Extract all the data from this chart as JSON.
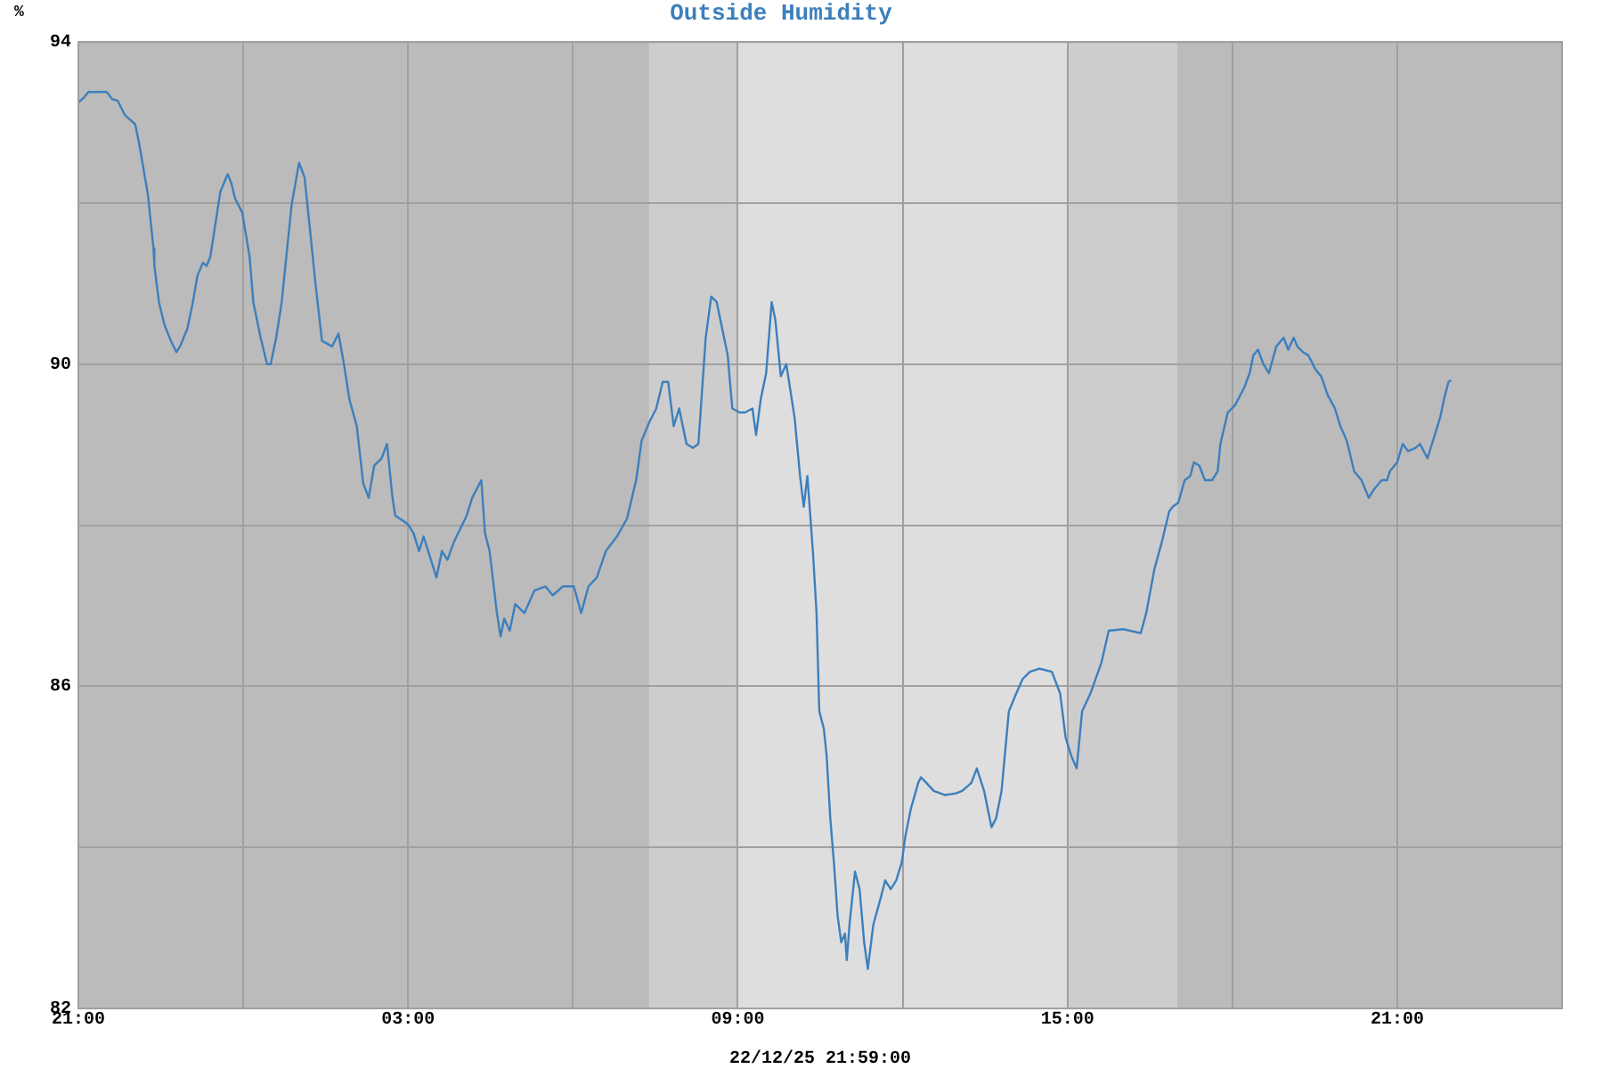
{
  "chart_data": {
    "type": "line",
    "title": "Outside Humidity",
    "xlabel": "22/12/25 21:59:00",
    "ylabel": "%",
    "xlim": [
      "--12-21T21:00",
      "--12-23T00:00"
    ],
    "xticks": [
      {
        "value": "--12-21T21:00",
        "label": "21:00"
      },
      {
        "value": "--12-22T00:00",
        "label": null
      },
      {
        "value": "--12-22T03:00",
        "label": "03:00"
      },
      {
        "value": "--12-22T06:00",
        "label": null
      },
      {
        "value": "--12-22T09:00",
        "label": "09:00"
      },
      {
        "value": "--12-22T12:00",
        "label": null
      },
      {
        "value": "--12-22T15:00",
        "label": "15:00"
      },
      {
        "value": "--12-22T18:00",
        "label": null
      },
      {
        "value": "--12-22T21:00",
        "label": "21:00"
      },
      {
        "value": "--12-23T00:00",
        "label": null
      }
    ],
    "ylim": [
      82,
      94
    ],
    "yticks": [
      82,
      {
        "value": 84,
        "label": null
      },
      86,
      {
        "value": 88,
        "label": null
      },
      90,
      {
        "value": 92,
        "label": null
      },
      94
    ],
    "grid": true,
    "marker": "none",
    "line_style": "solid",
    "bands": [
      {
        "axis": "x",
        "from": "--12-22T07:23",
        "to": "--12-22T09:00",
        "color": "#cdcdcd"
      },
      {
        "axis": "x",
        "from": "--12-22T09:00",
        "to": "--12-22T15:00",
        "color": "#dedede"
      },
      {
        "axis": "x",
        "from": "--12-22T15:00",
        "to": "--12-22T17:00",
        "color": "#cdcdcd"
      }
    ],
    "x": [
      "--12-21T21:00",
      "--12-21T21:06",
      "--12-21T21:11",
      "--12-21T21:31",
      "--12-21T21:37",
      "--12-21T21:43",
      "--12-21T21:51",
      "--12-21T22:02",
      "--12-21T22:06",
      "--12-21T22:10",
      "--12-21T22:16",
      "--12-21T22:22",
      "--12-21T22:23",
      "--12-21T22:28",
      "--12-21T22:34",
      "--12-21T22:41",
      "--12-21T22:47",
      "--12-21T22:51",
      "--12-21T22:59",
      "--12-21T23:05",
      "--12-21T23:10",
      "--12-21T23:16",
      "--12-21T23:20",
      "--12-21T23:24",
      "--12-21T23:30",
      "--12-21T23:35",
      "--12-21T23:43",
      "--12-21T23:47",
      "--12-21T23:51",
      "--12-21T23:59",
      "--12-22T00:07",
      "--12-22T00:11",
      "--12-22T00:19",
      "--12-22T00:26",
      "--12-22T00:30",
      "--12-22T00:36",
      "--12-22T00:42",
      "--12-22T00:48",
      "--12-22T00:53",
      "--12-22T01:01",
      "--12-22T01:07",
      "--12-22T01:13",
      "--12-22T01:19",
      "--12-22T01:26",
      "--12-22T01:37",
      "--12-22T01:44",
      "--12-22T01:50",
      "--12-22T01:56",
      "--12-22T02:04",
      "--12-22T02:11",
      "--12-22T02:17",
      "--12-22T02:23",
      "--12-22T02:31",
      "--12-22T02:37",
      "--12-22T02:43",
      "--12-22T02:46",
      "--12-22T02:54",
      "--12-22T03:00",
      "--12-22T03:06",
      "--12-22T03:12",
      "--12-22T03:17",
      "--12-22T03:31",
      "--12-22T03:37",
      "--12-22T03:43",
      "--12-22T03:50",
      "--12-22T04:04",
      "--12-22T04:10",
      "--12-22T04:20",
      "--12-22T04:24",
      "--12-22T04:29",
      "--12-22T04:37",
      "--12-22T04:41",
      "--12-22T04:45",
      "--12-22T04:51",
      "--12-22T04:57",
      "--12-22T05:07",
      "--12-22T05:18",
      "--12-22T05:30",
      "--12-22T05:38",
      "--12-22T05:49",
      "--12-22T06:01",
      "--12-22T06:09",
      "--12-22T06:17",
      "--12-22T06:26",
      "--12-22T06:36",
      "--12-22T06:48",
      "--12-22T06:59",
      "--12-22T07:09",
      "--12-22T07:15",
      "--12-22T07:23",
      "--12-22T07:31",
      "--12-22T07:38",
      "--12-22T07:44",
      "--12-22T07:50",
      "--12-22T07:56",
      "--12-22T08:04",
      "--12-22T08:11",
      "--12-22T08:17",
      "--12-22T08:25",
      "--12-22T08:31",
      "--12-22T08:37",
      "--12-22T08:43",
      "--12-22T08:49",
      "--12-22T08:54",
      "--12-22T09:02",
      "--12-22T09:08",
      "--12-22T09:16",
      "--12-22T09:20",
      "--12-22T09:25",
      "--12-22T09:31",
      "--12-22T09:37",
      "--12-22T09:41",
      "--12-22T09:47",
      "--12-22T09:53",
      "--12-22T09:56",
      "--12-22T10:02",
      "--12-22T10:08",
      "--12-22T10:12",
      "--12-22T10:16",
      "--12-22T10:22",
      "--12-22T10:26",
      "--12-22T10:29",
      "--12-22T10:34",
      "--12-22T10:37",
      "--12-22T10:41",
      "--12-22T10:45",
      "--12-22T10:49",
      "--12-22T10:53",
      "--12-22T10:57",
      "--12-22T10:59",
      "--12-22T11:02",
      "--12-22T11:08",
      "--12-22T11:13",
      "--12-22T11:18",
      "--12-22T11:22",
      "--12-22T11:28",
      "--12-22T11:36",
      "--12-22T11:41",
      "--12-22T11:47",
      "--12-22T11:53",
      "--12-22T11:59",
      "--12-22T12:03",
      "--12-22T12:09",
      "--12-22T12:17",
      "--12-22T12:20",
      "--12-22T12:26",
      "--12-22T12:34",
      "--12-22T12:46",
      "--12-22T12:58",
      "--12-22T13:05",
      "--12-22T13:15",
      "--12-22T13:21",
      "--12-22T13:29",
      "--12-22T13:37",
      "--12-22T13:42",
      "--12-22T13:48",
      "--12-22T13:56",
      "--12-22T14:04",
      "--12-22T14:11",
      "--12-22T14:19",
      "--12-22T14:29",
      "--12-22T14:43",
      "--12-22T14:52",
      "--12-22T14:58",
      "--12-22T15:04",
      "--12-22T15:10",
      "--12-22T15:16",
      "--12-22T15:25",
      "--12-22T15:37",
      "--12-22T15:45",
      "--12-22T16:01",
      "--12-22T16:20",
      "--12-22T16:26",
      "--12-22T16:35",
      "--12-22T16:43",
      "--12-22T16:51",
      "--12-22T16:55",
      "--12-22T17:01",
      "--12-22T17:08",
      "--12-22T17:14",
      "--12-22T17:18",
      "--12-22T17:24",
      "--12-22T17:30",
      "--12-22T17:38",
      "--12-22T17:44",
      "--12-22T17:47",
      "--12-22T17:55",
      "--12-22T18:03",
      "--12-22T18:13",
      "--12-22T18:19",
      "--12-22T18:23",
      "--12-22T18:28",
      "--12-22T18:34",
      "--12-22T18:40",
      "--12-22T18:48",
      "--12-22T18:56",
      "--12-22T19:01",
      "--12-22T19:07",
      "--12-22T19:11",
      "--12-22T19:17",
      "--12-22T19:23",
      "--12-22T19:31",
      "--12-22T19:37",
      "--12-22T19:44",
      "--12-22T19:52",
      "--12-22T19:58",
      "--12-22T20:05",
      "--12-22T20:13",
      "--12-22T20:21",
      "--12-22T20:29",
      "--12-22T20:35",
      "--12-22T20:43",
      "--12-22T20:49",
      "--12-22T20:52",
      "--12-22T21:00",
      "--12-22T21:06",
      "--12-22T21:12",
      "--12-22T21:20",
      "--12-22T21:25",
      "--12-22T21:33",
      "--12-22T21:41",
      "--12-22T21:47",
      "--12-22T21:51",
      "--12-22T21:56",
      "--12-22T21:59"
    ],
    "series": [
      {
        "color": "#3d7fbd",
        "values": [
          93.25,
          93.31,
          93.38,
          93.38,
          93.29,
          93.27,
          93.09,
          92.98,
          92.76,
          92.5,
          92.1,
          91.44,
          91.22,
          90.77,
          90.49,
          90.29,
          90.15,
          90.22,
          90.44,
          90.77,
          91.1,
          91.26,
          91.22,
          91.33,
          91.77,
          92.14,
          92.36,
          92.25,
          92.06,
          91.88,
          91.33,
          90.77,
          90.33,
          90.0,
          90.0,
          90.33,
          90.77,
          91.44,
          91.99,
          92.5,
          92.32,
          91.66,
          90.99,
          90.29,
          90.22,
          90.38,
          90.0,
          89.56,
          89.23,
          88.52,
          88.34,
          88.74,
          88.83,
          89.01,
          88.34,
          88.12,
          88.06,
          88.01,
          87.9,
          87.68,
          87.86,
          87.35,
          87.68,
          87.57,
          87.79,
          88.12,
          88.34,
          88.56,
          87.9,
          87.68,
          86.91,
          86.62,
          86.84,
          86.69,
          87.02,
          86.91,
          87.19,
          87.24,
          87.13,
          87.24,
          87.24,
          86.91,
          87.24,
          87.35,
          87.68,
          87.86,
          88.08,
          88.56,
          89.05,
          89.27,
          89.45,
          89.78,
          89.78,
          89.23,
          89.45,
          89.01,
          88.96,
          89.01,
          90.33,
          90.84,
          90.77,
          90.44,
          90.11,
          89.45,
          89.4,
          89.4,
          89.45,
          89.12,
          89.56,
          89.89,
          90.77,
          90.55,
          89.85,
          90.0,
          89.78,
          89.34,
          88.61,
          88.23,
          88.61,
          87.68,
          86.91,
          85.69,
          85.47,
          85.14,
          84.36,
          83.81,
          83.15,
          82.82,
          82.93,
          82.6,
          83.04,
          83.7,
          83.48,
          82.82,
          82.49,
          83.04,
          83.37,
          83.59,
          83.48,
          83.59,
          83.81,
          84.14,
          84.48,
          84.8,
          84.87,
          84.8,
          84.7,
          84.65,
          84.67,
          84.7,
          84.8,
          84.98,
          84.7,
          84.25,
          84.36,
          84.7,
          85.69,
          85.91,
          86.09,
          86.18,
          86.22,
          86.18,
          85.91,
          85.36,
          85.14,
          84.98,
          85.69,
          85.91,
          86.29,
          86.69,
          86.71,
          86.66,
          86.91,
          87.46,
          87.79,
          88.17,
          88.23,
          88.28,
          88.56,
          88.61,
          88.78,
          88.74,
          88.56,
          88.56,
          88.67,
          89.01,
          89.4,
          89.49,
          89.71,
          89.89,
          90.11,
          90.18,
          90.0,
          89.89,
          90.22,
          90.33,
          90.18,
          90.33,
          90.22,
          90.15,
          90.11,
          89.93,
          89.85,
          89.62,
          89.45,
          89.23,
          89.05,
          88.67,
          88.56,
          88.34,
          88.45,
          88.56,
          88.56,
          88.67,
          88.78,
          89.01,
          88.92,
          88.96,
          89.01,
          88.83,
          89.12,
          89.34,
          89.56,
          89.78,
          89.8
        ]
      }
    ]
  }
}
